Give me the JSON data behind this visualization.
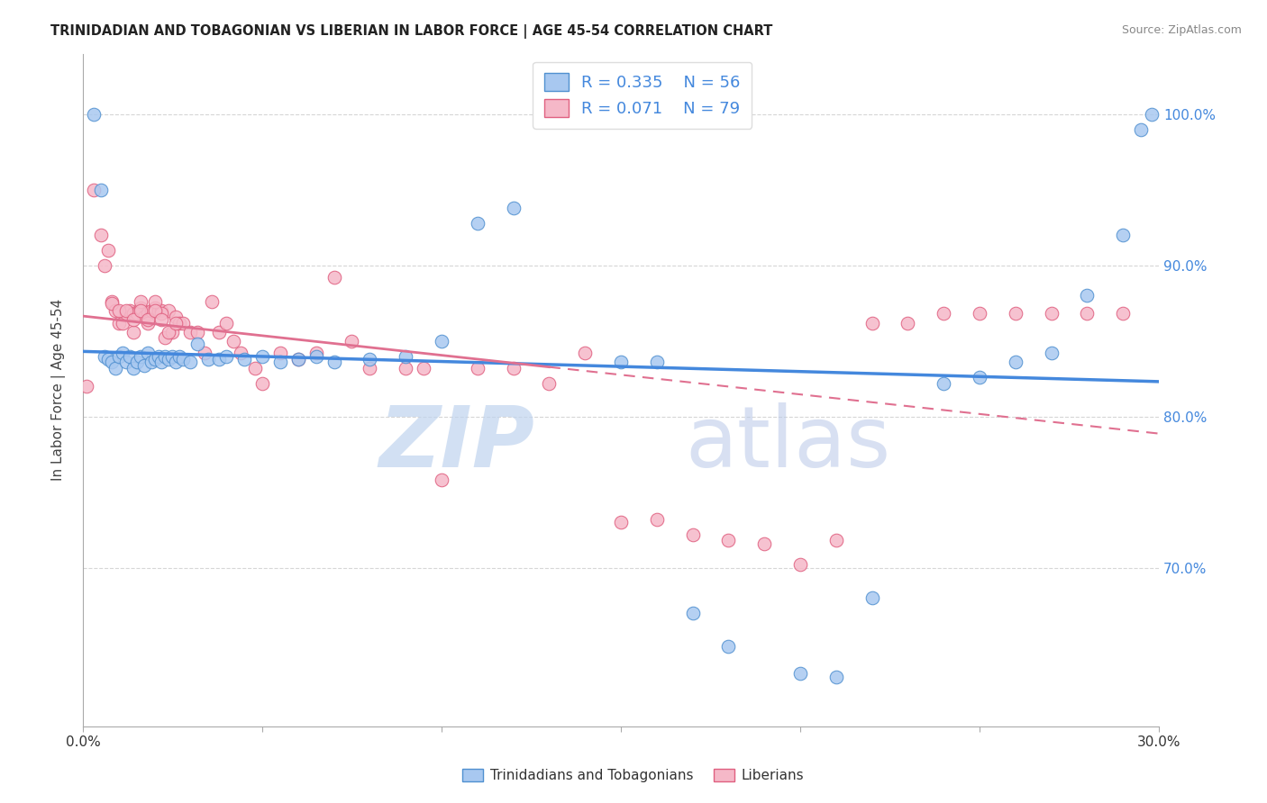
{
  "title": "TRINIDADIAN AND TOBAGONIAN VS LIBERIAN IN LABOR FORCE | AGE 45-54 CORRELATION CHART",
  "source": "Source: ZipAtlas.com",
  "ylabel": "In Labor Force | Age 45-54",
  "yaxis_values": [
    0.7,
    0.8,
    0.9,
    1.0
  ],
  "xlim": [
    0.0,
    0.3
  ],
  "ylim": [
    0.595,
    1.04
  ],
  "R_blue": 0.335,
  "N_blue": 56,
  "R_pink": 0.071,
  "N_pink": 79,
  "legend_label_blue": "Trinidadians and Tobagonians",
  "legend_label_pink": "Liberians",
  "blue_color": "#a8c8f0",
  "pink_color": "#f5b8c8",
  "blue_edge_color": "#5090d0",
  "pink_edge_color": "#e06080",
  "blue_line_color": "#4488dd",
  "pink_line_color": "#e07090",
  "right_axis_color": "#4488dd",
  "watermark_zip_color": "#c0d4ee",
  "watermark_atlas_color": "#b8c8e8",
  "blue_x": [
    0.003,
    0.005,
    0.006,
    0.007,
    0.008,
    0.009,
    0.01,
    0.011,
    0.012,
    0.013,
    0.014,
    0.015,
    0.016,
    0.017,
    0.018,
    0.019,
    0.02,
    0.021,
    0.022,
    0.023,
    0.024,
    0.025,
    0.026,
    0.027,
    0.028,
    0.03,
    0.032,
    0.035,
    0.038,
    0.04,
    0.045,
    0.05,
    0.055,
    0.06,
    0.065,
    0.07,
    0.08,
    0.09,
    0.1,
    0.11,
    0.12,
    0.15,
    0.16,
    0.17,
    0.18,
    0.2,
    0.21,
    0.22,
    0.24,
    0.25,
    0.26,
    0.27,
    0.28,
    0.29,
    0.295,
    0.298
  ],
  "blue_y": [
    1.0,
    0.95,
    0.84,
    0.838,
    0.836,
    0.832,
    0.84,
    0.842,
    0.836,
    0.84,
    0.832,
    0.836,
    0.84,
    0.834,
    0.842,
    0.836,
    0.838,
    0.84,
    0.836,
    0.84,
    0.838,
    0.84,
    0.836,
    0.84,
    0.838,
    0.836,
    0.848,
    0.838,
    0.838,
    0.84,
    0.838,
    0.84,
    0.836,
    0.838,
    0.84,
    0.836,
    0.838,
    0.84,
    0.85,
    0.928,
    0.938,
    0.836,
    0.836,
    0.67,
    0.648,
    0.63,
    0.628,
    0.68,
    0.822,
    0.826,
    0.836,
    0.842,
    0.88,
    0.92,
    0.99,
    1.0
  ],
  "pink_x": [
    0.001,
    0.003,
    0.005,
    0.007,
    0.008,
    0.009,
    0.01,
    0.011,
    0.012,
    0.013,
    0.014,
    0.015,
    0.016,
    0.017,
    0.018,
    0.019,
    0.02,
    0.021,
    0.022,
    0.023,
    0.024,
    0.025,
    0.026,
    0.027,
    0.028,
    0.03,
    0.032,
    0.034,
    0.036,
    0.038,
    0.04,
    0.042,
    0.044,
    0.048,
    0.05,
    0.055,
    0.06,
    0.065,
    0.07,
    0.075,
    0.08,
    0.09,
    0.095,
    0.1,
    0.11,
    0.12,
    0.13,
    0.14,
    0.15,
    0.16,
    0.17,
    0.18,
    0.19,
    0.2,
    0.21,
    0.22,
    0.23,
    0.24,
    0.25,
    0.26,
    0.27,
    0.28,
    0.29,
    0.014,
    0.016,
    0.018,
    0.02,
    0.022,
    0.024,
    0.026,
    0.006,
    0.008,
    0.01,
    0.012,
    0.014,
    0.016,
    0.018,
    0.02,
    0.022
  ],
  "pink_y": [
    0.82,
    0.95,
    0.92,
    0.91,
    0.876,
    0.87,
    0.862,
    0.862,
    0.868,
    0.87,
    0.868,
    0.868,
    0.872,
    0.866,
    0.868,
    0.87,
    0.872,
    0.87,
    0.87,
    0.852,
    0.87,
    0.856,
    0.866,
    0.862,
    0.862,
    0.856,
    0.856,
    0.842,
    0.876,
    0.856,
    0.862,
    0.85,
    0.842,
    0.832,
    0.822,
    0.842,
    0.838,
    0.842,
    0.892,
    0.85,
    0.832,
    0.832,
    0.832,
    0.758,
    0.832,
    0.832,
    0.822,
    0.842,
    0.73,
    0.732,
    0.722,
    0.718,
    0.716,
    0.702,
    0.718,
    0.862,
    0.862,
    0.868,
    0.868,
    0.868,
    0.868,
    0.868,
    0.868,
    0.856,
    0.876,
    0.862,
    0.876,
    0.868,
    0.856,
    0.862,
    0.9,
    0.875,
    0.87,
    0.87,
    0.864,
    0.87,
    0.864,
    0.87,
    0.864
  ]
}
